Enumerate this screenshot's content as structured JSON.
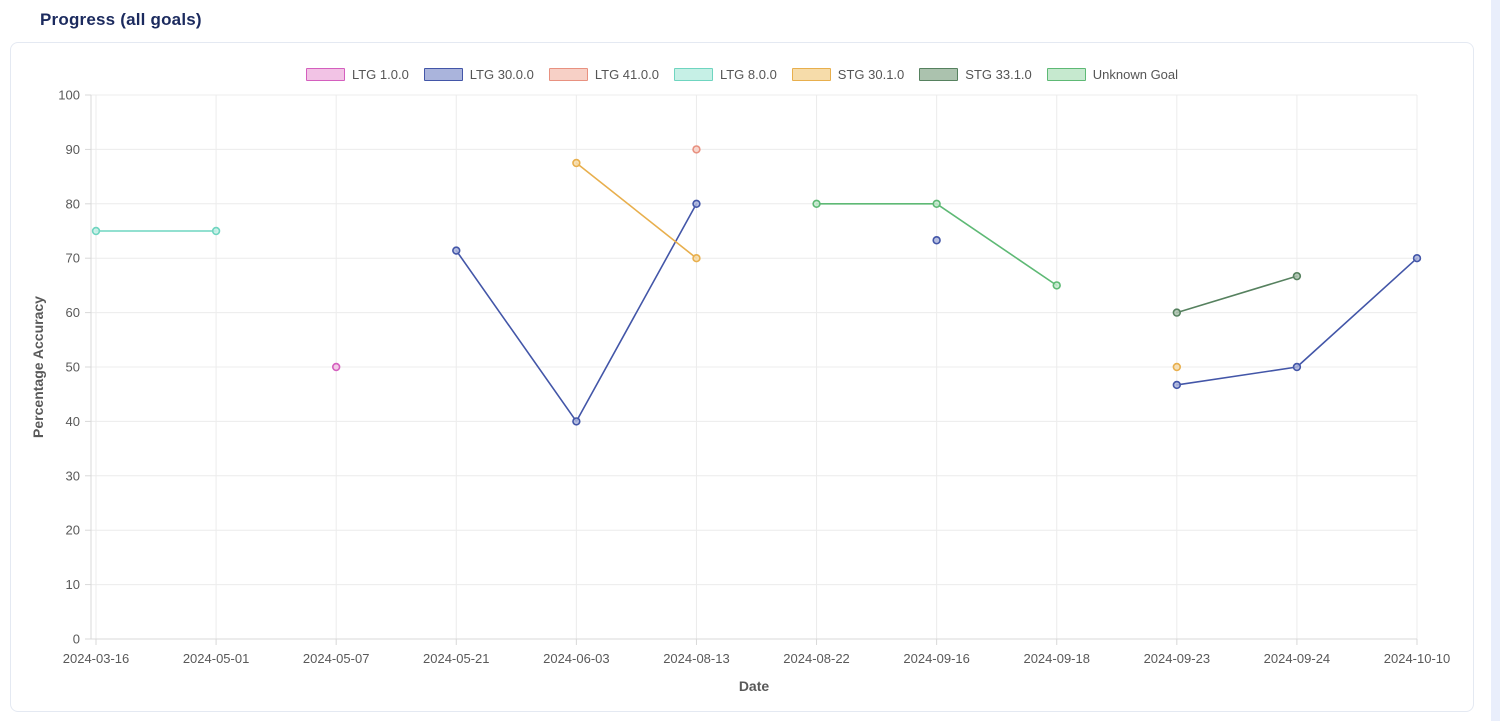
{
  "page": {
    "title": "Progress (all goals)"
  },
  "chart_data": {
    "type": "line",
    "title": "Progress (all goals)",
    "xlabel": "Date",
    "ylabel": "Percentage Accuracy",
    "ylim": [
      0,
      100
    ],
    "ytick_step": 10,
    "grid": true,
    "legend_position": "top",
    "categories": [
      "2024-03-16",
      "2024-05-01",
      "2024-05-07",
      "2024-05-21",
      "2024-06-03",
      "2024-08-13",
      "2024-08-22",
      "2024-09-16",
      "2024-09-18",
      "2024-09-23",
      "2024-09-24",
      "2024-10-10"
    ],
    "series": [
      {
        "name": "LTG 1.0.0",
        "color": "#d45fbe",
        "fill": "#f2c3e5",
        "values": [
          null,
          null,
          50,
          null,
          null,
          null,
          null,
          null,
          null,
          null,
          null,
          null
        ]
      },
      {
        "name": "LTG 30.0.0",
        "color": "#4356a8",
        "fill": "#aab4dc",
        "values": [
          null,
          null,
          null,
          71.4,
          40,
          80,
          null,
          73.3,
          null,
          46.7,
          50,
          70
        ]
      },
      {
        "name": "LTG 41.0.0",
        "color": "#e89180",
        "fill": "#f7d0c6",
        "values": [
          null,
          null,
          null,
          null,
          null,
          90,
          null,
          null,
          null,
          null,
          null,
          null
        ]
      },
      {
        "name": "LTG 8.0.0",
        "color": "#6fd5c0",
        "fill": "#c6f0e6",
        "values": [
          75,
          75,
          null,
          null,
          null,
          null,
          null,
          null,
          null,
          null,
          null,
          null
        ]
      },
      {
        "name": "STG 30.1.0",
        "color": "#e8af4d",
        "fill": "#f6dcaa",
        "values": [
          null,
          null,
          null,
          null,
          87.5,
          70,
          null,
          null,
          null,
          50,
          null,
          null
        ]
      },
      {
        "name": "STG 33.1.0",
        "color": "#56815f",
        "fill": "#abc2ae",
        "values": [
          null,
          null,
          null,
          null,
          null,
          null,
          null,
          null,
          null,
          60,
          66.7,
          null
        ]
      },
      {
        "name": "Unknown Goal",
        "color": "#5eb975",
        "fill": "#c6e9cf",
        "values": [
          null,
          null,
          null,
          null,
          null,
          null,
          80,
          80,
          65,
          null,
          null,
          null
        ]
      }
    ]
  },
  "colors": {
    "title_text": "#1b2a5e",
    "axis_text": "#595959",
    "grid": "#ececec",
    "axis_border": "#d8d8d8",
    "card_border": "#e4e9f2",
    "right_strip": "#e9eefb"
  }
}
